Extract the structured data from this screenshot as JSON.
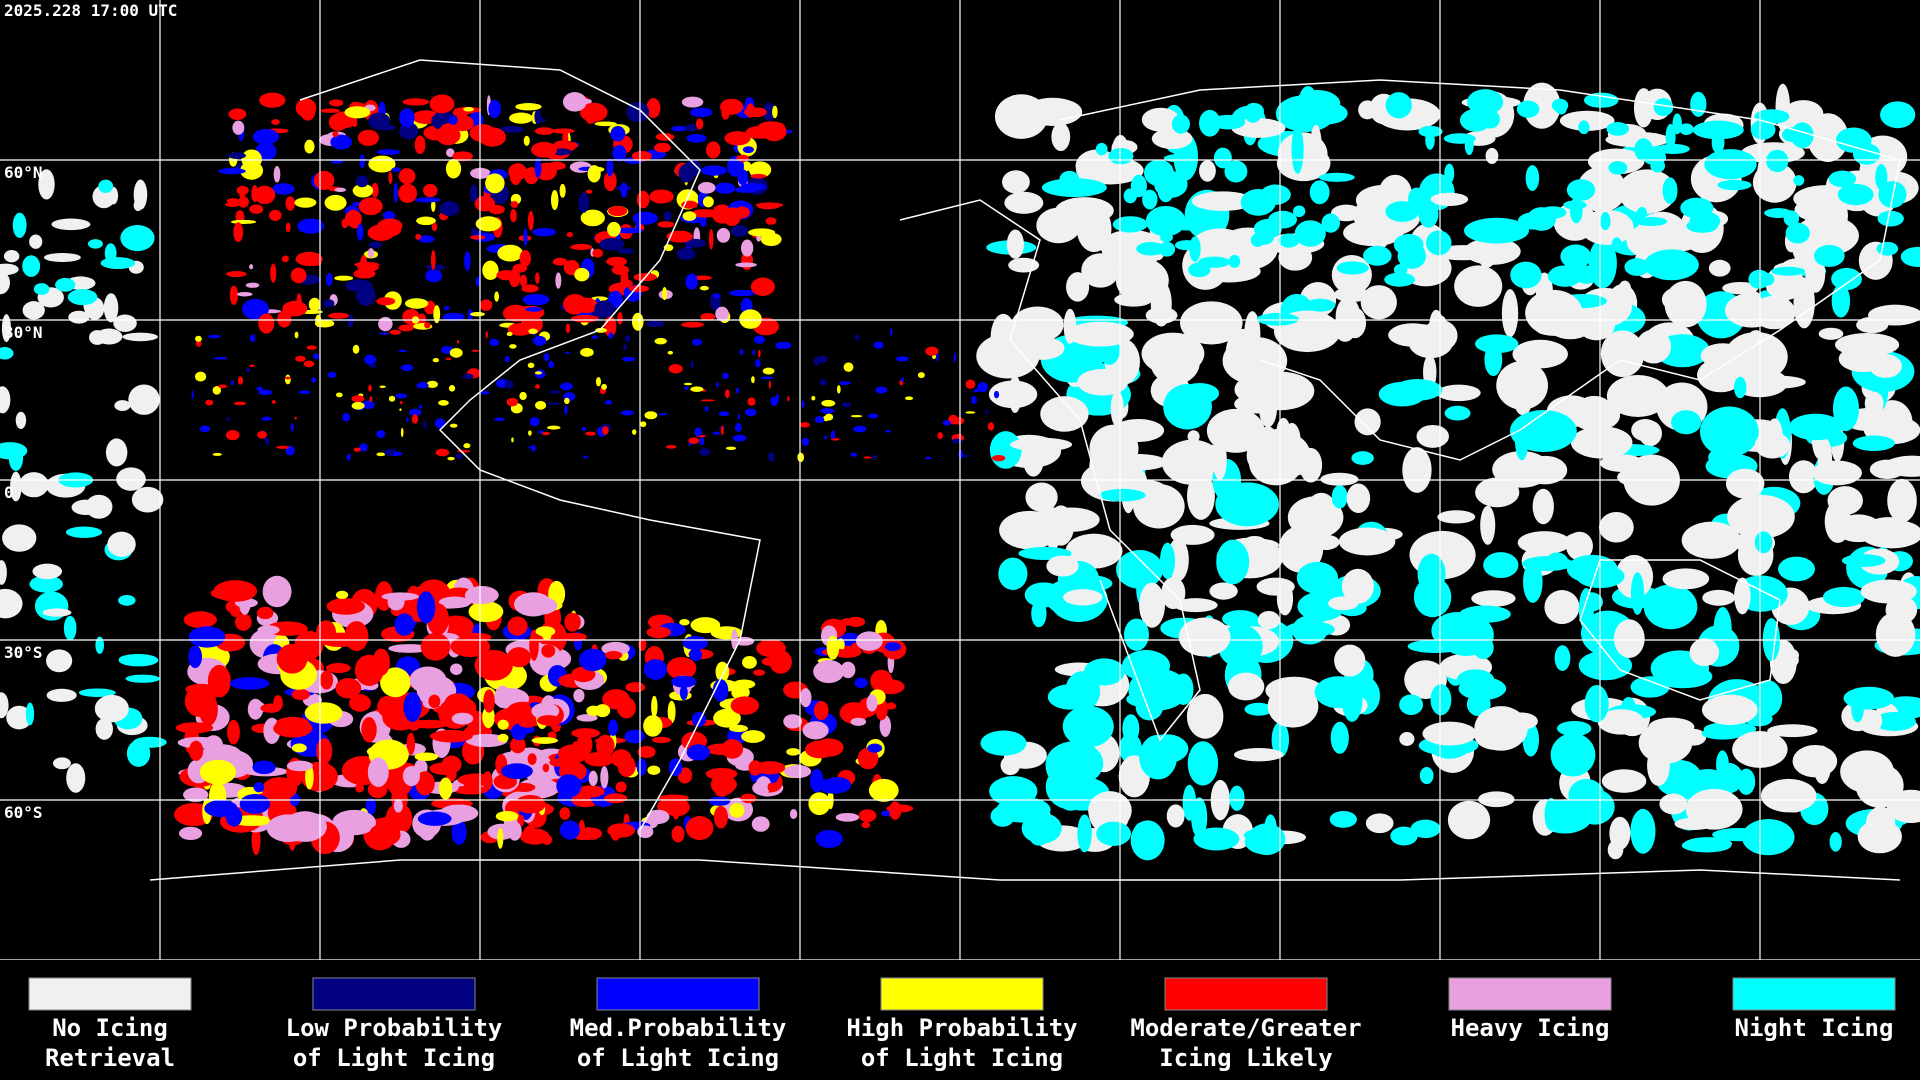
{
  "header": {
    "timestamp": "2025.228 17:00 UTC"
  },
  "latitude_labels": [
    "60°N",
    "30°N",
    "0",
    "30°S",
    "60°S"
  ],
  "legend": [
    {
      "color": "#f0f0f0",
      "lines": [
        "No Icing",
        "Retrieval"
      ]
    },
    {
      "color": "#000080",
      "lines": [
        "Low Probability",
        "of Light Icing"
      ]
    },
    {
      "color": "#0000ff",
      "lines": [
        "Med.Probability",
        "of Light Icing"
      ]
    },
    {
      "color": "#ffff00",
      "lines": [
        "High Probability",
        "of Light Icing"
      ]
    },
    {
      "color": "#ff0000",
      "lines": [
        "Moderate/Greater",
        "Icing Likely"
      ]
    },
    {
      "color": "#e8a0e0",
      "lines": [
        "Heavy Icing"
      ]
    },
    {
      "color": "#00ffff",
      "lines": [
        "Night Icing"
      ]
    }
  ]
}
